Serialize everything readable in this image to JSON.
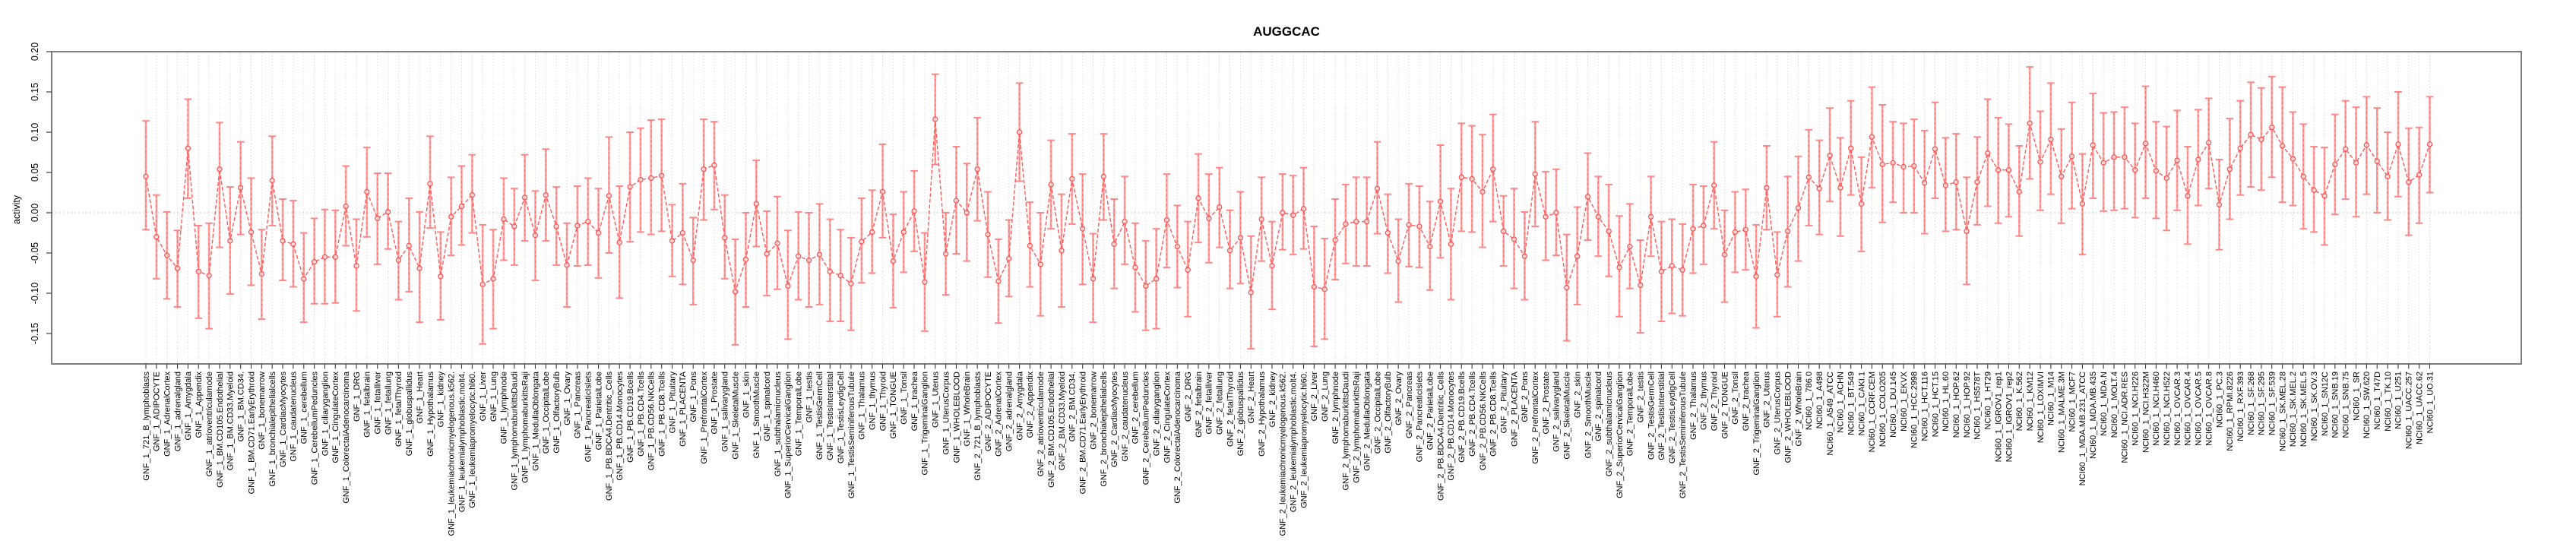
{
  "chart_data": {
    "type": "scatter",
    "subtype": "error-bar-series",
    "title": "AUGGCAC",
    "ylabel": "activity",
    "xlabel": "",
    "ylim": [
      -0.188,
      0.2
    ],
    "yticks": [
      0.2,
      0.15,
      0.1,
      0.05,
      0.0,
      -0.05,
      -0.1,
      -0.15
    ],
    "ytick_labels": [
      "0.20",
      "0.15",
      "0.10",
      "0.05",
      "0.00",
      "-0.05",
      "-0.10",
      "-0.15"
    ],
    "grid": "vertical dotted gridline at every category; dotted horizontal line at zero",
    "legend_position": "none",
    "colors": {
      "point_line": "#ff4f4f",
      "series_line": "#ff5a5a",
      "error_bar": "#ffa0a0",
      "error_bar_core": "#ff6b6b",
      "error_cap": "#ff8787",
      "gridline": "#dcdcdc",
      "zero_line": "#c9c9c9",
      "box": "#7d7d7d",
      "tick": "#3d3d3d",
      "text": "#000000",
      "background": "#ffffff"
    },
    "categories": [
      "GNF_1_721_B_lymphoblasts",
      "GNF_1_ADIPOCYTE",
      "GNF_1_AdrenalCortex",
      "GNF_1_adrenalgland",
      "GNF_1_Amygdala",
      "GNF_1_Appendix",
      "GNF_1_atrioventricularnode",
      "GNF_1_BM.CD105.Endothelial",
      "GNF_1_BM.CD33.Myeloid",
      "GNF_1_BM.CD34.",
      "GNF_1_BM.CD71.EarlyErythroid",
      "GNF_1_bonemarrow",
      "GNF_1_bronchialepithelialcells",
      "GNF_1_CardiacMyocytes",
      "GNF_1_caudatenucleus",
      "GNF_1_cerebellum",
      "GNF_1_CerebellumPeduncles",
      "GNF_1_ciliaryganglion",
      "GNF_1_CingulateCortex",
      "GNF_1_ColorectalAdenocarcinoma",
      "GNF_1_DRG",
      "GNF_1_fetalbrain",
      "GNF_1_fetalliver",
      "GNF_1_fetallung",
      "GNF_1_fetalThyroid",
      "GNF_1_globuspallidus",
      "GNF_1_Heart",
      "GNF_1_Hypothalamus",
      "GNF_1_kidney",
      "GNF_1_leukemiachronicmyelogenous.k562.",
      "GNF_1_leukemialymphoblastic.molt4.",
      "GNF_1_leukemiapromyelocytic.hl60.",
      "GNF_1_Liver",
      "GNF_1_Lung",
      "GNF_1_lymphnode",
      "GNF_1_lymphomaburkittsDaudi",
      "GNF_1_lymphomaburkittsRaji",
      "GNF_1_MedullaOblongata",
      "GNF_1_OccipitalLobe",
      "GNF_1_OlfactoryBulb",
      "GNF_1_Ovary",
      "GNF_1_Pancreas",
      "GNF_1_PancreaticIslets",
      "GNF_1_ParietalLobe",
      "GNF_1_PB.BDCA4.Dentritic_Cells",
      "GNF_1_PB.CD14.Monocytes",
      "GNF_1_PB.CD19.Bcells",
      "GNF_1_PB.CD4.Tcells",
      "GNF_1_PB.CD56.NKCells",
      "GNF_1_PB.CD8.Tcells",
      "GNF_1_Pituitary",
      "GNF_1_PLACENTA",
      "GNF_1_Pons",
      "GNF_1_PrefrontalCortex",
      "GNF_1_Prostate",
      "GNF_1_salivarygland",
      "GNF_1_SkeletalMuscle",
      "GNF_1_skin",
      "GNF_1_SmoothMuscle",
      "GNF_1_spinalcord",
      "GNF_1_subthalamicnucleus",
      "GNF_1_SuperiorCervicalGanglion",
      "GNF_1_TemporalLobe",
      "GNF_1_testis",
      "GNF_1_TestisGermCell",
      "GNF_1_TestisInterstitial",
      "GNF_1_TestisLeydigCell",
      "GNF_1_TestisSeminiferousTubule",
      "GNF_1_Thalamus",
      "GNF_1_thymus",
      "GNF_1_Thyroid",
      "GNF_1_TONGUE",
      "GNF_1_Tonsil",
      "GNF_1_trachea",
      "GNF_1_TrigeminalGanglion",
      "GNF_1_Uterus",
      "GNF_1_UterusCorpus",
      "GNF_1_WHOLEBLOOD",
      "GNF_1_WholeBrain",
      "GNF_2_721_B_lymphoblasts",
      "GNF_2_ADIPOCYTE",
      "GNF_2_AdrenalCortex",
      "GNF_2_adrenalgland",
      "GNF_2_Amygdala",
      "GNF_2_Appendix",
      "GNF_2_atrioventricularnode",
      "GNF_2_BM.CD105.Endothelial",
      "GNF_2_BM.CD33.Myeloid",
      "GNF_2_BM.CD34.",
      "GNF_2_BM.CD71.EarlyErythroid",
      "GNF_2_bonemarrow",
      "GNF_2_bronchialepithelialcells",
      "GNF_2_CardiacMyocytes",
      "GNF_2_caudatenucleus",
      "GNF_2_cerebellum",
      "GNF_2_CerebellumPeduncles",
      "GNF_2_ciliaryganglion",
      "GNF_2_CingulateCortex",
      "GNF_2_ColorectalAdenocarcinoma",
      "GNF_2_DRG",
      "GNF_2_fetalbrain",
      "GNF_2_fetalliver",
      "GNF_2_fetallung",
      "GNF_2_fetalThyroid",
      "GNF_2_globuspallidus",
      "GNF_2_Heart",
      "GNF_2_Hypothalamus",
      "GNF_2_kidney",
      "GNF_2_leukemiachronicmyelogenous.k562.",
      "GNF_2_leukemialymphoblastic.molt4.",
      "GNF_2_leukemiapromyelocytic.hl60.",
      "GNF_2_Liver",
      "GNF_2_Lung",
      "GNF_2_lymphnode",
      "GNF_2_lymphomaburkittsDaudi",
      "GNF_2_lymphomaburkittsRaji",
      "GNF_2_MedullaOblongata",
      "GNF_2_OccipitalLobe",
      "GNF_2_OlfactoryBulb",
      "GNF_2_Ovary",
      "GNF_2_Pancreas",
      "GNF_2_PancreaticIslets",
      "GNF_2_ParietalLobe",
      "GNF_2_PB.BDCA4.Dentritic_Cells",
      "GNF_2_PB.CD14.Monocytes",
      "GNF_2_PB.CD19.Bcells",
      "GNF_2_PB.CD4.Tcells",
      "GNF_2_PB.CD56.NKCells",
      "GNF_2_PB.CD8.Tcells",
      "GNF_2_Pituitary",
      "GNF_2_PLACENTA",
      "GNF_2_Pons",
      "GNF_2_PrefrontalCortex",
      "GNF_2_Prostate",
      "GNF_2_salivarygland",
      "GNF_2_SkeletalMuscle",
      "GNF_2_skin",
      "GNF_2_SmoothMuscle",
      "GNF_2_spinalcord",
      "GNF_2_subthalamicnucleus",
      "GNF_2_SuperiorCervicalGanglion",
      "GNF_2_TemporalLobe",
      "GNF_2_testis",
      "GNF_2_TestisGermCell",
      "GNF_2_TestisInterstitial",
      "GNF_2_TestisLeydigCell",
      "GNF_2_TestisSeminiferousTubule",
      "GNF_2_Thalamus",
      "GNF_2_thymus",
      "GNF_2_Thyroid",
      "GNF_2_TONGUE",
      "GNF_2_Tonsil",
      "GNF_2_trachea",
      "GNF_2_TrigeminalGanglion",
      "GNF_2_Uterus",
      "GNF_2_UterusCorpus",
      "GNF_2_WHOLEBLOOD",
      "GNF_2_WholeBrain",
      "NCI60_1_786.0",
      "NCI60_1_A498",
      "NCI60_1_A549_ATCC",
      "NCI60_1_ACHN",
      "NCI60_1_BT.549",
      "NCI60_1_CAKI.1",
      "NCI60_1_CCRF.CEM",
      "NCI60_1_COLO205",
      "NCI60_1_DU.145",
      "NCI60_1_EKVX",
      "NCI60_1_HCC.2998",
      "NCI60_1_HCT.116",
      "NCI60_1_HCT.15",
      "NCI60_1_HL.60",
      "NCI60_1_HOP.62",
      "NCI60_1_HOP.92",
      "NCI60_1_HS578T",
      "NCI60_1_HT29",
      "NCI60_1_IGROV1_rep1",
      "NCI60_1_IGROV1_rep2",
      "NCI60_1_K.562",
      "NCI60_1_KM12",
      "NCI60_1_LOXIMVI",
      "NCI60_1_M14",
      "NCI60_1_MALME.3M",
      "NCI60_1_MCF7",
      "NCI60_1_MDA.MB.231_ATCC",
      "NCI60_1_MDA.MB.435",
      "NCI60_1_MDA.N",
      "NCI60_1_MOLT.4",
      "NCI60_1_NCI.ADR.RES",
      "NCI60_1_NCI.H226",
      "NCI60_1_NCI.H322M",
      "NCI60_1_NCI.H460",
      "NCI60_1_NCI.H522",
      "NCI60_1_OVCAR.3",
      "NCI60_1_OVCAR.4",
      "NCI60_1_OVCAR.5",
      "NCI60_1_OVCAR.8",
      "NCI60_1_PC.3",
      "NCI60_1_RPMI.8226",
      "NCI60_1_RXF.393",
      "NCI60_1_SF.268",
      "NCI60_1_SF.295",
      "NCI60_1_SF.539",
      "NCI60_1_SK.MEL.28",
      "NCI60_1_SK.MEL.2",
      "NCI60_1_SK.MEL.5",
      "NCI60_1_SK.OV.3",
      "NCI60_1_SN12C",
      "NCI60_1_SNB.19",
      "NCI60_1_SNB.75",
      "NCI60_1_SR",
      "NCI60_1_SW.620",
      "NCI60_1_T47D",
      "NCI60_1_TK.10",
      "NCI60_1_U251",
      "NCI60_1_UACC.257",
      "NCI60_1_UACC.62",
      "NCI60_1_UO.31"
    ],
    "values": [
      0.045,
      -0.03,
      -0.053,
      -0.069,
      0.08,
      -0.073,
      -0.078,
      0.054,
      -0.035,
      0.031,
      -0.024,
      -0.076,
      0.04,
      -0.035,
      -0.039,
      -0.082,
      -0.061,
      -0.055,
      -0.055,
      0.008,
      -0.066,
      0.026,
      -0.007,
      0.001,
      -0.059,
      -0.041,
      -0.069,
      0.036,
      -0.079,
      -0.005,
      0.008,
      0.022,
      -0.089,
      -0.082,
      -0.008,
      -0.017,
      0.019,
      -0.028,
      0.022,
      -0.017,
      -0.065,
      -0.016,
      -0.011,
      -0.025,
      0.021,
      -0.037,
      0.032,
      0.041,
      0.043,
      0.046,
      -0.035,
      -0.025,
      -0.059,
      0.054,
      0.059,
      -0.031,
      -0.098,
      -0.058,
      0.011,
      -0.051,
      -0.038,
      -0.091,
      -0.054,
      -0.059,
      -0.052,
      -0.073,
      -0.078,
      -0.088,
      -0.036,
      -0.024,
      0.026,
      -0.06,
      -0.024,
      0.002,
      -0.086,
      0.116,
      -0.051,
      0.015,
      0.0,
      0.054,
      -0.027,
      -0.085,
      -0.057,
      0.1,
      -0.041,
      -0.064,
      0.035,
      -0.047,
      0.042,
      -0.02,
      -0.082,
      0.045,
      -0.039,
      -0.011,
      -0.068,
      -0.091,
      -0.082,
      -0.009,
      -0.042,
      -0.071,
      0.018,
      -0.007,
      0.007,
      -0.047,
      -0.031,
      -0.099,
      -0.008,
      -0.066,
      0.0,
      -0.003,
      0.005,
      -0.092,
      -0.095,
      -0.034,
      -0.014,
      -0.011,
      -0.011,
      0.03,
      -0.025,
      -0.06,
      -0.015,
      -0.017,
      -0.042,
      0.014,
      -0.039,
      0.044,
      0.042,
      0.026,
      0.054,
      -0.023,
      -0.033,
      -0.054,
      0.048,
      -0.005,
      0.0,
      -0.093,
      -0.054,
      0.02,
      -0.005,
      -0.023,
      -0.068,
      -0.042,
      -0.09,
      -0.005,
      -0.073,
      -0.066,
      -0.071,
      -0.02,
      -0.016,
      0.034,
      -0.052,
      -0.024,
      -0.021,
      -0.079,
      0.031,
      -0.077,
      -0.023,
      0.006,
      0.044,
      0.03,
      0.071,
      0.031,
      0.08,
      0.011,
      0.094,
      0.06,
      0.062,
      0.057,
      0.058,
      0.037,
      0.079,
      0.034,
      0.038,
      -0.023,
      0.038,
      0.074,
      0.053,
      0.053,
      0.026,
      0.111,
      0.063,
      0.091,
      0.045,
      0.07,
      0.011,
      0.084,
      0.062,
      0.069,
      0.069,
      0.053,
      0.086,
      0.052,
      0.043,
      0.065,
      0.021,
      0.066,
      0.087,
      0.01,
      0.054,
      0.08,
      0.097,
      0.091,
      0.106,
      0.083,
      0.067,
      0.045,
      0.028,
      0.021,
      0.06,
      0.079,
      0.062,
      0.084,
      0.064,
      0.045,
      0.085,
      0.038,
      0.047,
      0.085
    ],
    "err_low": [
      -0.021,
      -0.082,
      -0.107,
      -0.117,
      0.018,
      -0.131,
      -0.144,
      -0.043,
      -0.101,
      -0.027,
      -0.09,
      -0.132,
      -0.016,
      -0.084,
      -0.092,
      -0.136,
      -0.113,
      -0.113,
      -0.112,
      -0.041,
      -0.122,
      -0.03,
      -0.064,
      -0.045,
      -0.108,
      -0.098,
      -0.136,
      -0.019,
      -0.133,
      -0.053,
      -0.04,
      -0.025,
      -0.163,
      -0.144,
      -0.059,
      -0.065,
      -0.035,
      -0.084,
      -0.035,
      -0.065,
      -0.117,
      -0.066,
      -0.065,
      -0.081,
      -0.05,
      -0.106,
      -0.036,
      -0.024,
      -0.027,
      -0.023,
      -0.079,
      -0.089,
      -0.114,
      -0.009,
      0.004,
      -0.082,
      -0.164,
      -0.117,
      -0.042,
      -0.103,
      -0.095,
      -0.157,
      -0.108,
      -0.117,
      -0.114,
      -0.135,
      -0.135,
      -0.146,
      -0.087,
      -0.075,
      -0.031,
      -0.118,
      -0.074,
      -0.048,
      -0.147,
      0.06,
      -0.102,
      -0.051,
      -0.06,
      -0.01,
      -0.08,
      -0.137,
      -0.104,
      0.039,
      -0.092,
      -0.128,
      -0.02,
      -0.117,
      -0.014,
      -0.089,
      -0.136,
      -0.009,
      -0.094,
      -0.064,
      -0.123,
      -0.146,
      -0.144,
      -0.068,
      -0.093,
      -0.129,
      -0.037,
      -0.062,
      -0.043,
      -0.094,
      -0.088,
      -0.169,
      -0.06,
      -0.12,
      -0.046,
      -0.052,
      -0.045,
      -0.166,
      -0.157,
      -0.083,
      -0.063,
      -0.066,
      -0.066,
      -0.026,
      -0.075,
      -0.111,
      -0.067,
      -0.068,
      -0.096,
      -0.056,
      -0.108,
      -0.023,
      -0.024,
      -0.043,
      -0.011,
      -0.066,
      -0.094,
      -0.108,
      -0.017,
      -0.059,
      -0.053,
      -0.159,
      -0.114,
      -0.034,
      -0.054,
      -0.079,
      -0.129,
      -0.094,
      -0.149,
      -0.054,
      -0.135,
      -0.125,
      -0.128,
      -0.075,
      -0.064,
      -0.02,
      -0.111,
      -0.074,
      -0.071,
      -0.143,
      -0.021,
      -0.129,
      -0.092,
      -0.06,
      -0.016,
      -0.027,
      0.014,
      -0.029,
      0.022,
      -0.048,
      0.031,
      -0.012,
      0.013,
      0.0,
      0.0,
      -0.026,
      0.018,
      -0.023,
      -0.021,
      -0.089,
      -0.015,
      0.008,
      -0.013,
      -0.005,
      -0.029,
      0.042,
      0.003,
      0.023,
      -0.013,
      0.005,
      -0.052,
      0.018,
      0.002,
      0.003,
      0.005,
      -0.006,
      0.018,
      -0.007,
      -0.022,
      0.003,
      -0.039,
      0.009,
      0.03,
      -0.046,
      -0.008,
      0.022,
      0.032,
      0.028,
      0.044,
      0.013,
      0.009,
      -0.02,
      -0.024,
      -0.04,
      -0.002,
      0.017,
      -0.005,
      0.023,
      0.0,
      -0.009,
      0.02,
      -0.028,
      -0.013,
      0.025
    ],
    "err_high": [
      0.114,
      0.022,
      0.001,
      -0.022,
      0.141,
      -0.016,
      -0.013,
      0.112,
      0.032,
      0.088,
      0.043,
      -0.021,
      0.095,
      0.017,
      0.015,
      -0.025,
      -0.007,
      0.004,
      0.003,
      0.058,
      -0.008,
      0.081,
      0.049,
      0.049,
      -0.011,
      0.018,
      0.001,
      0.095,
      -0.024,
      0.044,
      0.058,
      0.072,
      -0.015,
      -0.021,
      0.043,
      0.03,
      0.072,
      0.027,
      0.079,
      0.032,
      -0.013,
      0.033,
      0.043,
      0.03,
      0.094,
      0.033,
      0.1,
      0.105,
      0.115,
      0.116,
      0.01,
      0.036,
      -0.006,
      0.116,
      0.113,
      0.022,
      -0.033,
      0.0,
      0.065,
      0.002,
      0.02,
      -0.022,
      0.001,
      0.0,
      0.011,
      -0.008,
      -0.021,
      -0.031,
      0.018,
      0.028,
      0.085,
      -0.002,
      0.026,
      0.052,
      -0.025,
      0.172,
      0.0,
      0.082,
      0.061,
      0.118,
      0.026,
      -0.033,
      -0.009,
      0.161,
      0.013,
      0.0,
      0.09,
      0.023,
      0.098,
      0.048,
      -0.026,
      0.098,
      0.017,
      0.045,
      -0.013,
      -0.035,
      -0.02,
      0.048,
      0.009,
      -0.011,
      0.073,
      0.048,
      0.056,
      0.003,
      0.026,
      -0.029,
      0.044,
      -0.011,
      0.048,
      0.046,
      0.056,
      -0.017,
      -0.032,
      0.017,
      0.035,
      0.044,
      0.044,
      0.088,
      0.023,
      -0.008,
      0.036,
      0.033,
      0.014,
      0.084,
      0.03,
      0.111,
      0.108,
      0.097,
      0.122,
      0.021,
      0.03,
      0.001,
      0.113,
      0.051,
      0.054,
      -0.027,
      0.007,
      0.074,
      0.045,
      0.035,
      -0.004,
      0.011,
      -0.034,
      0.045,
      -0.011,
      -0.008,
      -0.014,
      0.035,
      0.033,
      0.088,
      0.003,
      0.026,
      0.029,
      -0.015,
      0.083,
      -0.024,
      0.045,
      0.07,
      0.103,
      0.09,
      0.13,
      0.093,
      0.139,
      0.069,
      0.156,
      0.134,
      0.113,
      0.111,
      0.116,
      0.102,
      0.137,
      0.093,
      0.098,
      0.044,
      0.094,
      0.141,
      0.118,
      0.11,
      0.083,
      0.181,
      0.126,
      0.161,
      0.104,
      0.137,
      0.073,
      0.148,
      0.124,
      0.125,
      0.131,
      0.111,
      0.157,
      0.113,
      0.107,
      0.127,
      0.082,
      0.128,
      0.142,
      0.066,
      0.117,
      0.139,
      0.162,
      0.155,
      0.169,
      0.156,
      0.125,
      0.11,
      0.082,
      0.081,
      0.122,
      0.139,
      0.131,
      0.144,
      0.13,
      0.1,
      0.15,
      0.105,
      0.106,
      0.144
    ]
  }
}
